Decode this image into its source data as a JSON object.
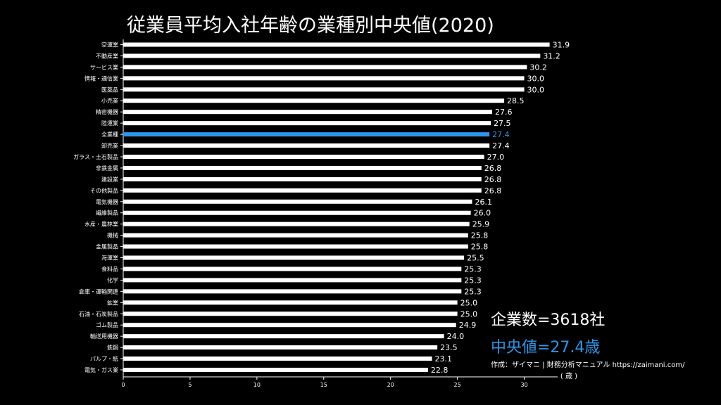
{
  "title": "従業員平均入社年齢の業種別中央値(2020)",
  "stats": {
    "companies": "企業数=3618社",
    "median": "中央値=27.4歳"
  },
  "credit": "作成：ザイマニ | 財務分析マニュアル https://zaimani.com/",
  "colors": {
    "bar": "#ffffff",
    "highlight": "#2f95e8",
    "background": "#000000"
  },
  "chart_data": {
    "type": "bar",
    "orientation": "horizontal",
    "categories": [
      "空運業",
      "不動産業",
      "サービス業",
      "情報・通信業",
      "医薬品",
      "小売業",
      "精密機器",
      "陸運業",
      "全業種",
      "卸売業",
      "ガラス・土石製品",
      "非鉄金属",
      "建設業",
      "その他製品",
      "電気機器",
      "繊維製品",
      "水産・農林業",
      "機械",
      "金属製品",
      "海運業",
      "食料品",
      "化学",
      "倉庫・運輸関連",
      "鉱業",
      "石油・石炭製品",
      "ゴム製品",
      "輸送用機器",
      "鉄鋼",
      "パルプ・紙",
      "電気・ガス業"
    ],
    "values": [
      31.9,
      31.2,
      30.2,
      30.0,
      30.0,
      28.5,
      27.6,
      27.5,
      27.4,
      27.4,
      27.0,
      26.8,
      26.8,
      26.8,
      26.1,
      26.0,
      25.9,
      25.8,
      25.8,
      25.5,
      25.3,
      25.3,
      25.3,
      25.0,
      25.0,
      24.9,
      24.0,
      23.5,
      23.1,
      22.8
    ],
    "value_labels": [
      "31.9",
      "31.2",
      "30.2",
      "30.0",
      "30.0",
      "28.5",
      "27.6",
      "27.5",
      "27.4",
      "27.4",
      "27.0",
      "26.8",
      "26.8",
      "26.8",
      "26.1",
      "26.0",
      "25.9",
      "25.8",
      "25.8",
      "25.5",
      "25.3",
      "25.3",
      "25.3",
      "25.0",
      "25.0",
      "24.9",
      "24.0",
      "23.5",
      "23.1",
      "22.8"
    ],
    "highlight_category": "全業種",
    "xlim": [
      0,
      32.5
    ],
    "xticks": [
      0,
      5,
      10,
      15,
      20,
      25,
      30
    ],
    "xlabel": "( 歳 )",
    "ylabel": "",
    "grid": false
  }
}
